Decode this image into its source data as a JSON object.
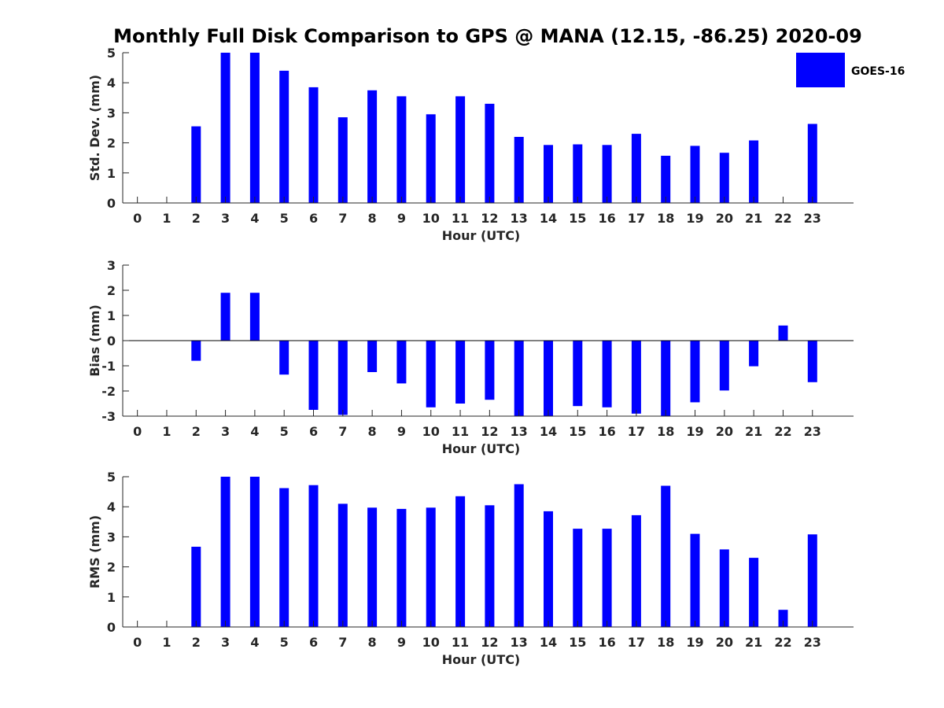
{
  "title": "Monthly Full Disk Comparison to GPS @ MANA (12.15, -86.25) 2020-09",
  "legend": {
    "label": "GOES-16",
    "color": "#0000ff",
    "placement": "top-right"
  },
  "colors": {
    "bar": "#0000ff",
    "axis": "#262626"
  },
  "chart_data": [
    {
      "type": "bar",
      "name": "std-dev",
      "xlabel": "Hour (UTC)",
      "ylabel": "Std. Dev. (mm)",
      "ylim": [
        0,
        5
      ],
      "yticks": [
        0,
        1,
        2,
        3,
        4,
        5
      ],
      "x": [
        0,
        1,
        2,
        3,
        4,
        5,
        6,
        7,
        8,
        9,
        10,
        11,
        12,
        13,
        14,
        15,
        16,
        17,
        18,
        19,
        20,
        21,
        22,
        23
      ],
      "series": [
        {
          "name": "GOES-16",
          "values": [
            null,
            null,
            2.55,
            5.0,
            5.0,
            4.4,
            3.85,
            2.85,
            3.75,
            3.55,
            2.95,
            3.55,
            3.3,
            2.2,
            1.93,
            1.95,
            1.93,
            2.3,
            1.57,
            1.9,
            1.67,
            2.08,
            null,
            2.63
          ]
        }
      ]
    },
    {
      "type": "bar",
      "name": "bias",
      "xlabel": "Hour (UTC)",
      "ylabel": "Bias (mm)",
      "ylim": [
        -3,
        3
      ],
      "yticks": [
        -3,
        -2,
        -1,
        0,
        1,
        2,
        3
      ],
      "x": [
        0,
        1,
        2,
        3,
        4,
        5,
        6,
        7,
        8,
        9,
        10,
        11,
        12,
        13,
        14,
        15,
        16,
        17,
        18,
        19,
        20,
        21,
        22,
        23
      ],
      "series": [
        {
          "name": "GOES-16",
          "values": [
            null,
            null,
            -0.8,
            1.9,
            1.9,
            -1.35,
            -2.75,
            -2.95,
            -1.25,
            -1.7,
            -2.65,
            -2.5,
            -2.35,
            -3.0,
            -3.0,
            -2.6,
            -2.65,
            -2.9,
            -3.0,
            -2.45,
            -1.98,
            -1.02,
            0.6,
            -1.65
          ]
        }
      ]
    },
    {
      "type": "bar",
      "name": "rms",
      "xlabel": "Hour (UTC)",
      "ylabel": "RMS (mm)",
      "ylim": [
        0,
        5
      ],
      "yticks": [
        0,
        1,
        2,
        3,
        4,
        5
      ],
      "x": [
        0,
        1,
        2,
        3,
        4,
        5,
        6,
        7,
        8,
        9,
        10,
        11,
        12,
        13,
        14,
        15,
        16,
        17,
        18,
        19,
        20,
        21,
        22,
        23
      ],
      "series": [
        {
          "name": "GOES-16",
          "values": [
            null,
            null,
            2.67,
            5.0,
            5.0,
            4.62,
            4.72,
            4.1,
            3.97,
            3.93,
            3.97,
            4.35,
            4.05,
            4.75,
            3.85,
            3.27,
            3.27,
            3.72,
            4.7,
            3.1,
            2.58,
            2.3,
            0.57,
            3.08
          ]
        }
      ]
    }
  ]
}
